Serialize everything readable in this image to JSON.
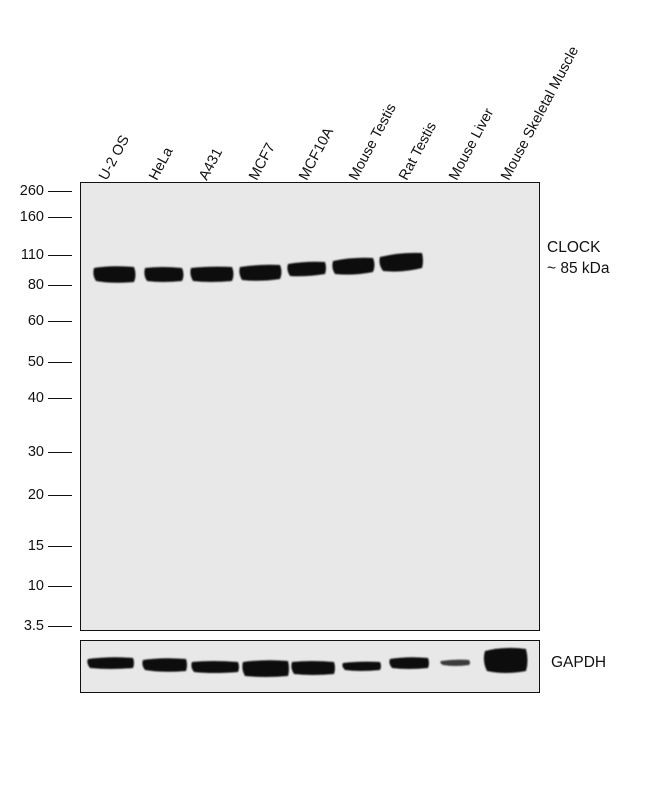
{
  "lanes": [
    "U-2 OS",
    "HeLa",
    "A431",
    "MCF7",
    "MCF10A",
    "Mouse Testis",
    "Rat Testis",
    "Mouse Liver",
    "Mouse Skeletal Muscle"
  ],
  "markers": [
    "260",
    "160",
    "110",
    "80",
    "60",
    "50",
    "40",
    "30",
    "20",
    "15",
    "10",
    "3.5"
  ],
  "main_target": {
    "name": "CLOCK",
    "size": "~ 85 kDa"
  },
  "loading_control": {
    "name": "GAPDH"
  },
  "colors": {
    "band": "#0d0d0d",
    "membrane": "#e8e8e8",
    "border": "#111111"
  }
}
